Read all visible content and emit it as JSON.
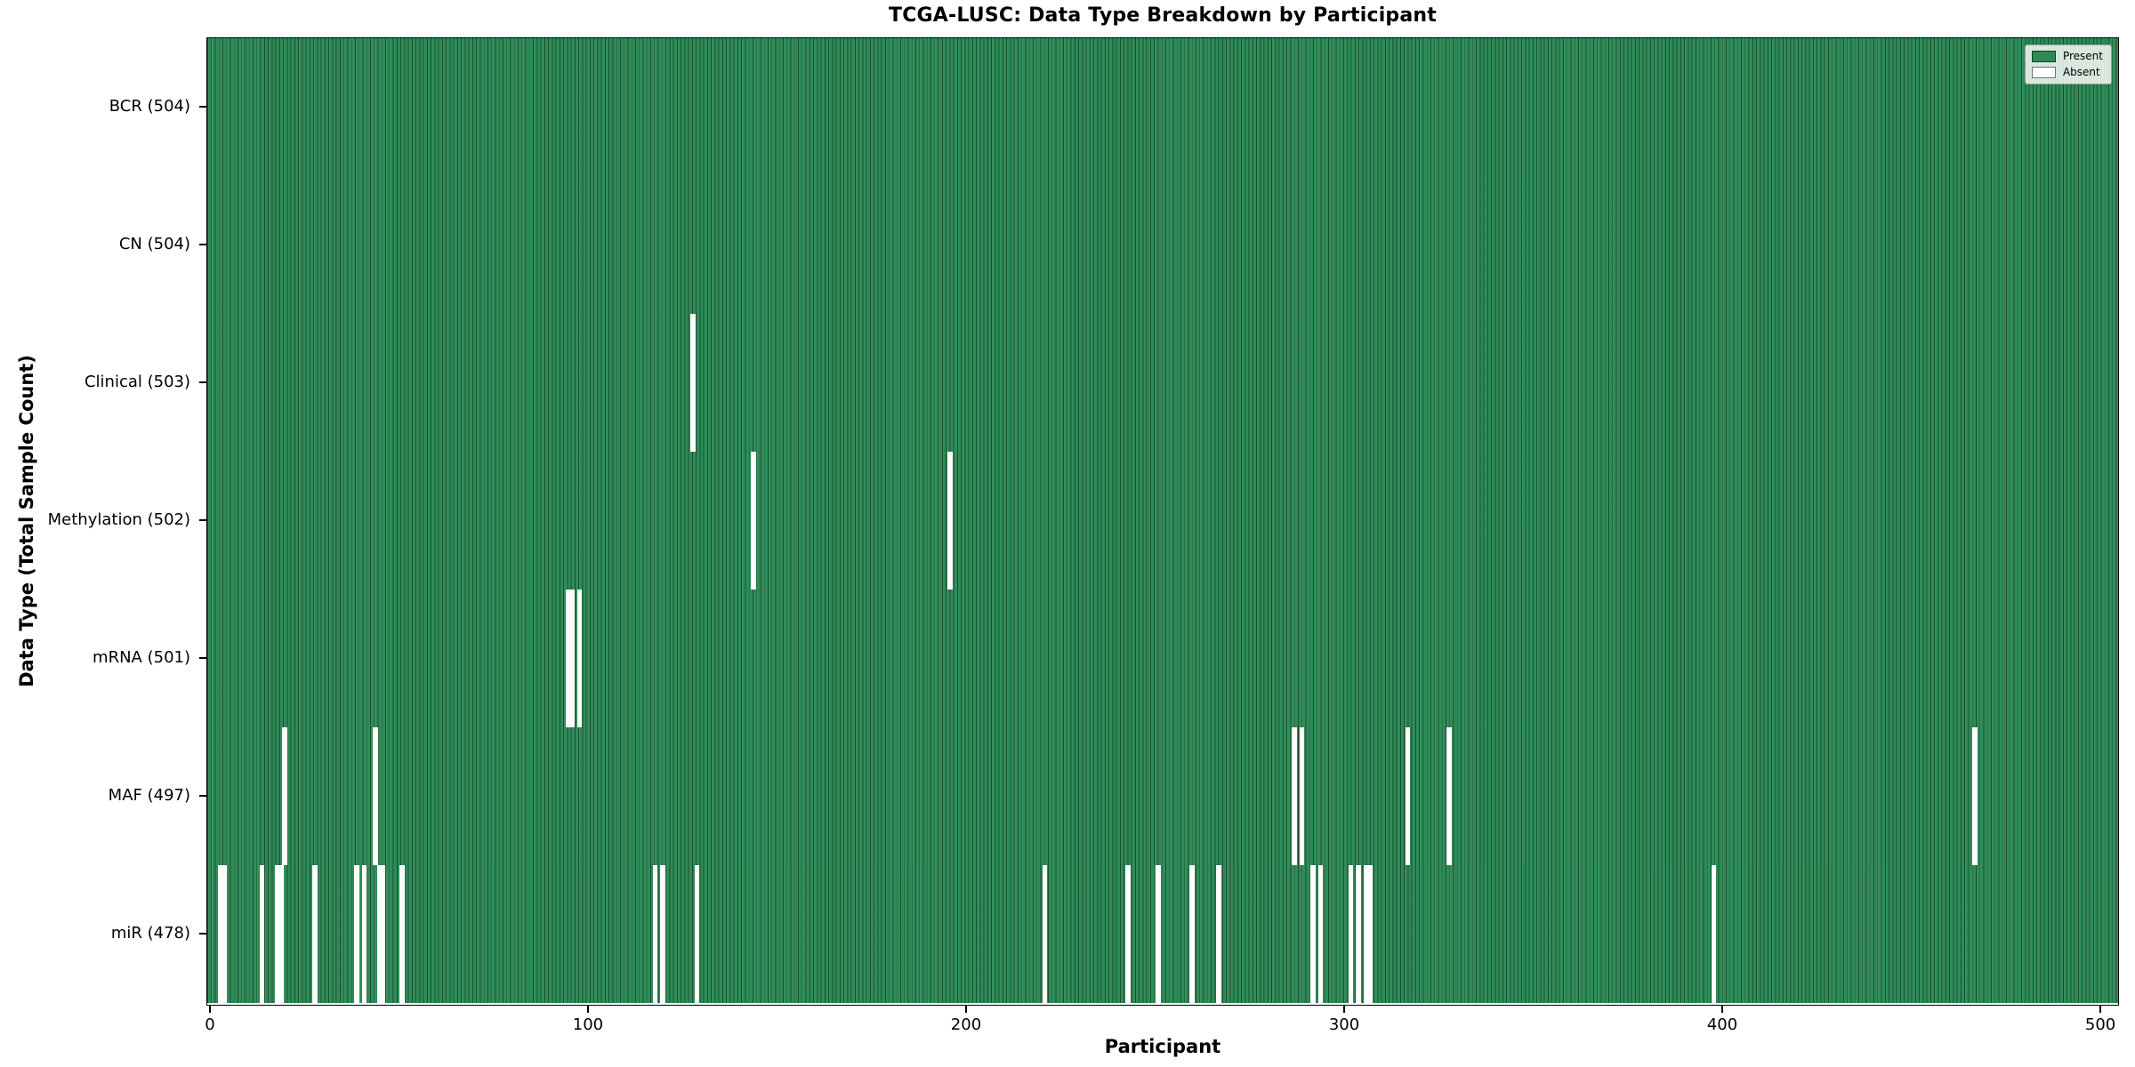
{
  "figure": {
    "title": "TCGA-LUSC: Data Type Breakdown by Participant"
  },
  "chart_data": {
    "type": "heatmap",
    "title": "TCGA-LUSC: Data Type Breakdown by Participant",
    "xlabel": "Participant",
    "ylabel": "Data Type (Total Sample Count)",
    "xlim": [
      -0.5,
      504.5
    ],
    "x_ticks": [
      0,
      100,
      200,
      300,
      400,
      500
    ],
    "n_participants": 504,
    "grid": false,
    "legend": {
      "position": "upper right",
      "entries": [
        {
          "label": "Present",
          "color": "#2e8b57"
        },
        {
          "label": "Absent",
          "color": "#ffffff"
        }
      ]
    },
    "colors": {
      "present_fill": "#2e8b57",
      "absent_fill": "#ffffff",
      "bar_edge": "#12462a",
      "background": "#ffffff"
    },
    "rows": [
      {
        "label": "BCR (504)",
        "data_type": "BCR",
        "total_samples": 504,
        "absent_participants": []
      },
      {
        "label": "CN (504)",
        "data_type": "CN",
        "total_samples": 504,
        "absent_participants": []
      },
      {
        "label": "Clinical (503)",
        "data_type": "Clinical",
        "total_samples": 503,
        "absent_participants": [
          128
        ]
      },
      {
        "label": "Methylation (502)",
        "data_type": "Methylation",
        "total_samples": 502,
        "absent_participants": [
          144,
          196
        ]
      },
      {
        "label": "mRNA (501)",
        "data_type": "mRNA",
        "total_samples": 501,
        "absent_participants": [
          95,
          96,
          98
        ]
      },
      {
        "label": "MAF (497)",
        "data_type": "MAF",
        "total_samples": 497,
        "absent_participants": [
          20,
          44,
          287,
          289,
          317,
          328,
          467
        ]
      },
      {
        "label": "miR (478)",
        "data_type": "miR",
        "total_samples": 478,
        "absent_participants": [
          3,
          4,
          14,
          18,
          19,
          28,
          39,
          41,
          45,
          46,
          51,
          118,
          120,
          129,
          221,
          243,
          251,
          260,
          267,
          292,
          294,
          302,
          304,
          306,
          307,
          398
        ]
      }
    ]
  }
}
